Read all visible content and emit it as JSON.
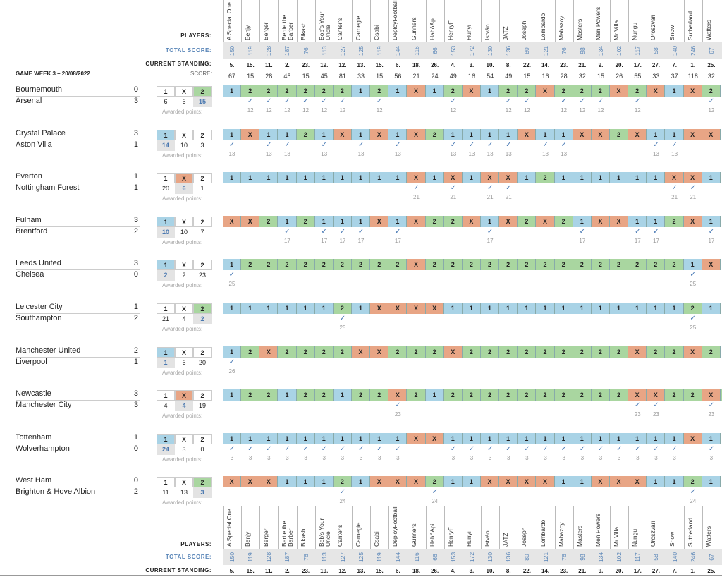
{
  "header": {
    "game_week": "GAME WEEK 3 – 20/08/2022",
    "players_label": "PLAYERS:",
    "total_label": "TOTAL SCORE:",
    "standing_label": "CURRENT STANDING:",
    "score_label": "SCORE:",
    "awarded_label": "Awarded points:",
    "outcome_labels": [
      "1",
      "X",
      "2"
    ]
  },
  "players": [
    {
      "name": "A Special One",
      "total": 150,
      "standing": "5.",
      "score": 67
    },
    {
      "name": "Benjy",
      "total": 119,
      "standing": "15.",
      "score": 15
    },
    {
      "name": "Berger",
      "total": 128,
      "standing": "11.",
      "score": 28
    },
    {
      "name": "Bertie the Barber",
      "total": 187,
      "standing": "2.",
      "score": 45
    },
    {
      "name": "Bikash",
      "total": 76,
      "standing": "23.",
      "score": 15
    },
    {
      "name": "Bob's Your Uncle",
      "total": 113,
      "standing": "19.",
      "score": 45
    },
    {
      "name": "Canter's",
      "total": 127,
      "standing": "12.",
      "score": 81
    },
    {
      "name": "Carnegie",
      "total": 125,
      "standing": "13.",
      "score": 33
    },
    {
      "name": "Csabi",
      "total": 119,
      "standing": "15.",
      "score": 15
    },
    {
      "name": "DeployFootball",
      "total": 144,
      "standing": "6.",
      "score": 56
    },
    {
      "name": "Gunners",
      "total": 116,
      "standing": "18.",
      "score": 21
    },
    {
      "name": "HahóApi",
      "total": 66,
      "standing": "26.",
      "score": 24
    },
    {
      "name": "HenryF",
      "total": 153,
      "standing": "4.",
      "score": 49
    },
    {
      "name": "Hunyi",
      "total": 172,
      "standing": "3.",
      "score": 16
    },
    {
      "name": "István",
      "total": 130,
      "standing": "10.",
      "score": 54
    },
    {
      "name": "JATZ",
      "total": 136,
      "standing": "8.",
      "score": 49
    },
    {
      "name": "Joseph",
      "total": 80,
      "standing": "22.",
      "score": 15
    },
    {
      "name": "Lombardo",
      "total": 121,
      "standing": "14.",
      "score": 16
    },
    {
      "name": "Mahazoy",
      "total": 76,
      "standing": "23.",
      "score": 28
    },
    {
      "name": "Masters",
      "total": 98,
      "standing": "21.",
      "score": 32
    },
    {
      "name": "Men Powers",
      "total": 134,
      "standing": "9.",
      "score": 15
    },
    {
      "name": "Mr Villa",
      "total": 102,
      "standing": "20.",
      "score": 26
    },
    {
      "name": "Nungu",
      "total": 117,
      "standing": "17.",
      "score": 55
    },
    {
      "name": "Oroszvari",
      "total": 58,
      "standing": "27.",
      "score": 33
    },
    {
      "name": "Snow",
      "total": 140,
      "standing": "7.",
      "score": 37
    },
    {
      "name": "Sutherland",
      "total": 246,
      "standing": "1.",
      "score": 118
    },
    {
      "name": "Watters",
      "total": 67,
      "standing": "25.",
      "score": 32
    }
  ],
  "matches": [
    {
      "home": "Bournemouth",
      "away": "Arsenal",
      "home_goals": 0,
      "away_goals": 3,
      "result": "2",
      "counts": [
        6,
        6,
        15
      ],
      "points": 12,
      "picks": "122222212 1X12X122X222X2X1X2"
    },
    {
      "home": "Crystal Palace",
      "away": "Aston Villa",
      "home_goals": 3,
      "away_goals": 1,
      "result": "1",
      "counts": [
        14,
        10,
        3
      ],
      "points": 13,
      "picks": "1X1121X1X1X21111X11XX2X11XX"
    },
    {
      "home": "Everton",
      "away": "Nottingham Forest",
      "home_goals": 1,
      "away_goals": 1,
      "result": "X",
      "counts": [
        20,
        6,
        1
      ],
      "points": 21,
      "picks": "1111111111X1X1XX12111111XX1"
    },
    {
      "home": "Fulham",
      "away": "Brentford",
      "home_goals": 3,
      "away_goals": 2,
      "result": "1",
      "counts": [
        10,
        10,
        7
      ],
      "points": 17,
      "picks": "XX212111X1X22X1X2X21XX112X1"
    },
    {
      "home": "Leeds United",
      "away": "Chelsea",
      "home_goals": 3,
      "away_goals": 0,
      "result": "1",
      "counts": [
        2,
        2,
        23
      ],
      "points": 25,
      "picks": "1222222222X22222222222222 1X"
    },
    {
      "home": "Leicester City",
      "away": "Southampton",
      "home_goals": 1,
      "away_goals": 2,
      "result": "2",
      "counts": [
        21,
        4,
        2
      ],
      "points": 25,
      "picks": "1111112 1XXXX111111111111121"
    },
    {
      "home": "Manchester United",
      "away": "Liverpool",
      "home_goals": 2,
      "away_goals": 1,
      "result": "1",
      "counts": [
        1,
        6,
        20
      ],
      "points": 26,
      "picks": "12X2222XX222X222222222X22X2"
    },
    {
      "home": "Newcastle",
      "away": "Manchester City",
      "home_goals": 3,
      "away_goals": 3,
      "result": "X",
      "counts": [
        4,
        4,
        19
      ],
      "points": 23,
      "picks": "122122122X212222222222XX22X2"
    },
    {
      "home": "Tottenham",
      "away": "Wolverhampton",
      "home_goals": 1,
      "away_goals": 0,
      "result": "1",
      "counts": [
        24,
        3,
        0
      ],
      "points": 3,
      "picks": "1111111111XX1111111111111X1"
    },
    {
      "home": "West Ham",
      "away": "Brighton & Hove Albion",
      "home_goals": 0,
      "away_goals": 2,
      "result": "2",
      "counts": [
        11,
        13,
        3
      ],
      "points": 24,
      "picks": "XXX1112 1XXX211XXXX11XXX1121"
    }
  ],
  "colors": {
    "pick_1": "#a9d3e6",
    "pick_X": "#e8a585",
    "pick_2": "#a9d6a0",
    "check": "#4a7ab5"
  }
}
